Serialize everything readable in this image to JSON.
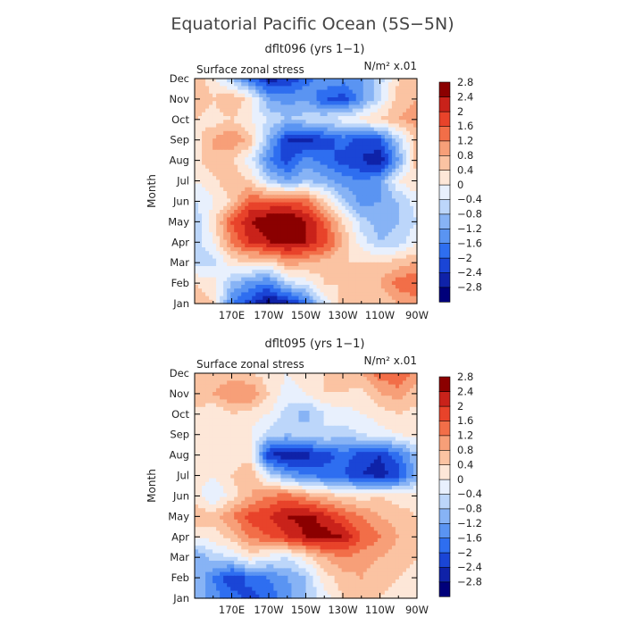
{
  "title": "Equatorial Pacific Ocean (5S−5N)",
  "chart_data": [
    {
      "type": "heatmap",
      "subtitle": "dflt096 (yrs 1−1)",
      "field_label": "Surface zonal stress",
      "units": "N/m² x.01",
      "ylabel": "Month",
      "x_ticks": [
        "170E",
        "170W",
        "150W",
        "130W",
        "110W",
        "90W"
      ],
      "y_ticks": [
        "Jan",
        "Feb",
        "Mar",
        "Apr",
        "May",
        "Jun",
        "Jul",
        "Aug",
        "Sep",
        "Oct",
        "Nov",
        "Dec"
      ],
      "xlim": [
        150,
        270
      ],
      "contour_levels": [
        -2.8,
        -2.4,
        -2,
        -1.6,
        -1.2,
        -0.8,
        -0.4,
        0,
        0.4,
        0.8,
        1.2,
        1.6,
        2,
        2.4,
        2.8
      ],
      "grid": [
        [
          0.6,
          0.4,
          -1.6,
          -2.2,
          -3.0,
          -2.6,
          -1.8,
          -0.3,
          0.6,
          0.8,
          0.4,
          0.8,
          1.0
        ],
        [
          0.4,
          0.2,
          -0.8,
          -1.4,
          -1.6,
          -0.6,
          -0.2,
          0.4,
          0.4,
          0.8,
          0.8,
          1.4,
          1.6
        ],
        [
          -0.6,
          -0.6,
          0.2,
          0.4,
          0.2,
          1.0,
          0.8,
          0.6,
          0.4,
          0.4,
          0.4,
          0.6,
          0.8
        ],
        [
          -0.6,
          0.0,
          1.2,
          2.0,
          2.4,
          2.6,
          2.4,
          1.8,
          0.8,
          -0.2,
          -0.8,
          -0.6,
          0.0
        ],
        [
          -0.8,
          0.2,
          1.6,
          2.4,
          2.8,
          3.0,
          2.4,
          1.6,
          0.4,
          -0.6,
          -1.0,
          -0.8,
          -0.4
        ],
        [
          -0.4,
          0.0,
          0.4,
          1.6,
          1.6,
          1.6,
          1.4,
          0.4,
          -0.6,
          -1.4,
          -1.2,
          -0.8,
          -0.2
        ],
        [
          0.0,
          0.2,
          0.8,
          0.4,
          -0.6,
          -1.2,
          -0.8,
          -1.0,
          -1.4,
          -1.6,
          -1.2,
          0.0,
          0.4
        ],
        [
          0.2,
          0.8,
          0.4,
          -0.2,
          -1.6,
          -2.2,
          -1.4,
          -1.8,
          -2.2,
          -2.4,
          -2.8,
          -1.2,
          0.6
        ],
        [
          0.2,
          0.8,
          1.2,
          0.6,
          -1.0,
          -2.4,
          -2.6,
          -2.2,
          -1.8,
          -2.2,
          -2.0,
          -0.6,
          0.6
        ],
        [
          0.4,
          0.2,
          0.4,
          0.0,
          -0.4,
          -0.8,
          -0.6,
          -0.4,
          -0.2,
          0.2,
          0.4,
          0.8,
          1.0
        ],
        [
          0.8,
          0.4,
          0.8,
          0.2,
          -1.2,
          -1.4,
          -1.2,
          -2.0,
          -2.2,
          -1.4,
          -0.4,
          0.6,
          0.8
        ],
        [
          0.6,
          0.2,
          -0.8,
          -1.8,
          -2.6,
          -2.4,
          -1.8,
          -1.2,
          -1.4,
          -1.2,
          -0.6,
          0.4,
          0.6
        ]
      ]
    },
    {
      "type": "heatmap",
      "subtitle": "dflt095 (yrs 1−1)",
      "field_label": "Surface zonal stress",
      "units": "N/m² x.01",
      "ylabel": "Month",
      "x_ticks": [
        "170E",
        "170W",
        "150W",
        "130W",
        "110W",
        "90W"
      ],
      "y_ticks": [
        "Jan",
        "Feb",
        "Mar",
        "Apr",
        "May",
        "Jun",
        "Jul",
        "Aug",
        "Sep",
        "Oct",
        "Nov",
        "Dec"
      ],
      "xlim": [
        150,
        270
      ],
      "contour_levels": [
        -2.8,
        -2.4,
        -2,
        -1.6,
        -1.2,
        -0.8,
        -0.4,
        0,
        0.4,
        0.8,
        1.2,
        1.6,
        2,
        2.4,
        2.8
      ],
      "grid": [
        [
          -1.0,
          -1.4,
          -1.8,
          -2.2,
          -1.8,
          -1.4,
          -0.8,
          -0.2,
          0.4,
          0.6,
          0.4,
          0.2,
          0.0
        ],
        [
          -0.8,
          -1.6,
          -2.4,
          -1.8,
          -1.6,
          -1.2,
          -0.8,
          0.2,
          0.6,
          0.8,
          0.6,
          0.4,
          0.2
        ],
        [
          -1.2,
          -0.6,
          -0.4,
          0.2,
          -0.2,
          -0.4,
          0.2,
          0.8,
          1.2,
          1.0,
          0.8,
          0.6,
          0.4
        ],
        [
          0.0,
          0.2,
          0.6,
          1.2,
          1.6,
          2.0,
          2.4,
          2.6,
          2.4,
          1.6,
          1.2,
          0.8,
          0.6
        ],
        [
          0.8,
          0.6,
          1.2,
          1.8,
          2.0,
          2.4,
          2.6,
          2.2,
          1.6,
          1.2,
          0.8,
          0.6,
          0.4
        ],
        [
          0.2,
          -0.4,
          0.2,
          0.8,
          1.2,
          1.4,
          1.0,
          0.6,
          0.4,
          0.2,
          0.4,
          0.2,
          0.2
        ],
        [
          0.2,
          0.0,
          0.4,
          0.8,
          -0.4,
          -1.2,
          -1.6,
          -1.8,
          -2.0,
          -2.4,
          -2.6,
          -2.2,
          -1.0
        ],
        [
          0.4,
          0.2,
          0.2,
          0.2,
          -2.4,
          -2.8,
          -2.6,
          -2.2,
          -1.8,
          -2.2,
          -2.4,
          -1.8,
          -0.8
        ],
        [
          0.0,
          0.2,
          0.4,
          0.0,
          -0.6,
          -0.8,
          -0.6,
          -0.4,
          -0.6,
          -0.4,
          -0.2,
          0.0,
          0.2
        ],
        [
          0.2,
          0.0,
          0.4,
          0.2,
          0.0,
          -0.6,
          -1.0,
          -0.4,
          -0.2,
          0.0,
          0.2,
          0.4,
          0.2
        ],
        [
          0.8,
          0.8,
          1.2,
          1.2,
          0.4,
          -0.2,
          0.0,
          0.4,
          0.4,
          0.2,
          0.8,
          1.0,
          0.6
        ],
        [
          0.4,
          0.4,
          0.6,
          0.4,
          0.2,
          0.0,
          0.2,
          0.4,
          0.6,
          0.8,
          1.4,
          1.6,
          1.0
        ]
      ]
    }
  ],
  "colors": {
    "bins": [
      "#00007a",
      "#0f22a8",
      "#1a45d6",
      "#2e6ef0",
      "#5a94f2",
      "#87b3f5",
      "#bcd6fa",
      "#e8f0fd",
      "#fde7d8",
      "#fbc3a2",
      "#f79f78",
      "#f26e48",
      "#e8432a",
      "#c9221a",
      "#8b0000"
    ],
    "axis": "#000000"
  }
}
